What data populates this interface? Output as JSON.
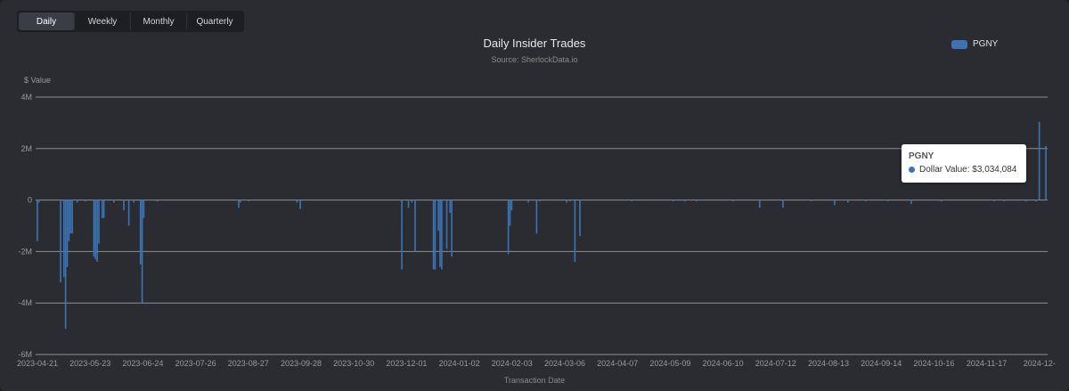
{
  "tabs": [
    {
      "label": "Daily",
      "active": true
    },
    {
      "label": "Weekly",
      "active": false
    },
    {
      "label": "Monthly",
      "active": false
    },
    {
      "label": "Quarterly",
      "active": false
    }
  ],
  "tooltip": {
    "title": "PGNY",
    "label": "Dollar Value: $3,034,084"
  },
  "colors": {
    "series": "#3b74b4",
    "grid": "#8c8f95",
    "background": "#2b2c31"
  },
  "chart_data": {
    "type": "bar",
    "title": "Daily Insider Trades",
    "subtitle": "Source: SherlockData.io",
    "ylabel": "$ Value",
    "xlabel": "Transaction Date",
    "ylim": [
      -6000000,
      4000000
    ],
    "y_ticks": [
      4000000,
      2000000,
      0,
      -2000000,
      -4000000,
      -6000000
    ],
    "y_tick_labels": [
      "4M",
      "2M",
      "0",
      "-2M",
      "-4M",
      "-6M"
    ],
    "x_tick_labels": [
      "2023-04-21",
      "2023-05-23",
      "2023-06-24",
      "2023-07-26",
      "2023-08-27",
      "2023-09-28",
      "2023-10-30",
      "2023-12-01",
      "2024-01-02",
      "2024-02-03",
      "2024-03-06",
      "2024-04-07",
      "2024-05-09",
      "2024-06-10",
      "2024-07-12",
      "2024-08-13",
      "2024-09-14",
      "2024-10-16",
      "2024-11-17",
      "2024-12-"
    ],
    "x_range": [
      "2023-04-21",
      "2024-12-19"
    ],
    "legend_position": "top-right",
    "grid": true,
    "series": [
      {
        "name": "PGNY",
        "points": [
          [
            "2023-04-22",
            -1600000
          ],
          [
            "2023-04-23",
            -100000
          ],
          [
            "2023-05-06",
            -3200000
          ],
          [
            "2023-05-08",
            -3000000
          ],
          [
            "2023-05-09",
            -5000000
          ],
          [
            "2023-05-10",
            -2600000
          ],
          [
            "2023-05-11",
            -1600000
          ],
          [
            "2023-05-12",
            -1300000
          ],
          [
            "2023-05-13",
            -1300000
          ],
          [
            "2023-05-16",
            -100000
          ],
          [
            "2023-05-21",
            -50000
          ],
          [
            "2023-05-26",
            -2200000
          ],
          [
            "2023-05-27",
            -2300000
          ],
          [
            "2023-05-28",
            -2400000
          ],
          [
            "2023-05-29",
            -1700000
          ],
          [
            "2023-05-31",
            -700000
          ],
          [
            "2023-06-01",
            -700000
          ],
          [
            "2023-06-07",
            -100000
          ],
          [
            "2023-06-13",
            -400000
          ],
          [
            "2023-06-16",
            -1000000
          ],
          [
            "2023-06-19",
            -100000
          ],
          [
            "2023-06-23",
            -2500000
          ],
          [
            "2023-06-24",
            -4000000
          ],
          [
            "2023-06-25",
            -700000
          ],
          [
            "2023-07-03",
            -50000
          ],
          [
            "2023-08-21",
            -300000
          ],
          [
            "2023-08-22",
            -100000
          ],
          [
            "2023-08-27",
            -50000
          ],
          [
            "2023-09-25",
            -100000
          ],
          [
            "2023-09-27",
            -350000
          ],
          [
            "2023-11-27",
            -2700000
          ],
          [
            "2023-12-01",
            -300000
          ],
          [
            "2023-12-03",
            -100000
          ],
          [
            "2023-12-05",
            -2000000
          ],
          [
            "2023-12-16",
            -2700000
          ],
          [
            "2023-12-17",
            -2700000
          ],
          [
            "2023-12-19",
            -1200000
          ],
          [
            "2023-12-20",
            -2600000
          ],
          [
            "2023-12-21",
            -2700000
          ],
          [
            "2023-12-24",
            -1900000
          ],
          [
            "2023-12-26",
            -500000
          ],
          [
            "2023-12-27",
            -2200000
          ],
          [
            "2024-01-30",
            -2100000
          ],
          [
            "2024-01-31",
            -1000000
          ],
          [
            "2024-02-01",
            -400000
          ],
          [
            "2024-02-11",
            -100000
          ],
          [
            "2024-02-16",
            -1300000
          ],
          [
            "2024-02-18",
            -50000
          ],
          [
            "2024-03-05",
            -100000
          ],
          [
            "2024-03-07",
            -50000
          ],
          [
            "2024-03-10",
            -2400000
          ],
          [
            "2024-03-13",
            -1400000
          ],
          [
            "2024-04-13",
            -50000
          ],
          [
            "2024-05-08",
            -50000
          ],
          [
            "2024-05-15",
            -50000
          ],
          [
            "2024-05-22",
            -50000
          ],
          [
            "2024-06-13",
            -50000
          ],
          [
            "2024-06-29",
            -300000
          ],
          [
            "2024-07-13",
            -300000
          ],
          [
            "2024-07-30",
            -50000
          ],
          [
            "2024-08-13",
            -200000
          ],
          [
            "2024-08-21",
            -100000
          ],
          [
            "2024-09-01",
            -50000
          ],
          [
            "2024-09-14",
            -50000
          ],
          [
            "2024-09-28",
            -150000
          ],
          [
            "2024-10-16",
            -50000
          ],
          [
            "2024-11-17",
            -50000
          ],
          [
            "2024-11-23",
            -50000
          ],
          [
            "2024-12-06",
            -50000
          ],
          [
            "2024-12-12",
            -50000
          ],
          [
            "2024-12-14",
            3034084
          ],
          [
            "2024-12-18",
            2100000
          ]
        ]
      }
    ]
  }
}
